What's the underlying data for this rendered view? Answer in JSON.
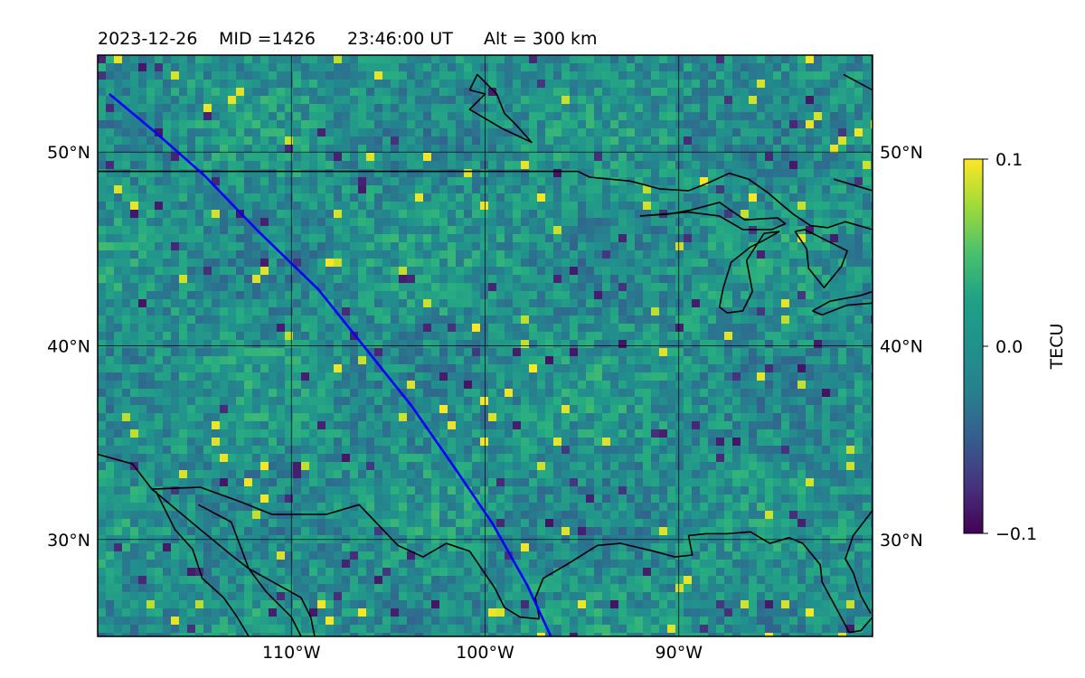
{
  "chart_data": {
    "type": "heatmap",
    "title": {
      "date": "2023-12-26",
      "mid": "MID =1426",
      "time": "23:46:00  UT",
      "alt": "Alt = 300 km"
    },
    "projection": "PlateCarree",
    "extent_deg": {
      "lon": [
        -120,
        -80
      ],
      "lat": [
        25,
        55
      ]
    },
    "grid": true,
    "x_ticks": [
      {
        "value": -110,
        "label": "110°W"
      },
      {
        "value": -100,
        "label": "100°W"
      },
      {
        "value": -90,
        "label": "90°W"
      }
    ],
    "y_ticks": [
      {
        "value": 30,
        "label": "30°N"
      },
      {
        "value": 40,
        "label": "40°N"
      },
      {
        "value": 50,
        "label": "50°N"
      }
    ],
    "colorbar": {
      "label": "TECU",
      "colormap": "viridis",
      "range": [
        -0.1,
        0.1
      ],
      "ticks": [
        {
          "value": 0.1,
          "label": "0.1"
        },
        {
          "value": 0.0,
          "label": "0.0"
        },
        {
          "value": -0.1,
          "label": "−0.1"
        }
      ]
    },
    "satellite_track": {
      "color": "#0000ff",
      "points_lonlat": [
        [
          -119.4,
          53.0
        ],
        [
          -117.0,
          51.0
        ],
        [
          -114.5,
          48.8
        ],
        [
          -111.8,
          46.0
        ],
        [
          -108.6,
          42.9
        ],
        [
          -106.2,
          39.9
        ],
        [
          -103.8,
          36.9
        ],
        [
          -101.5,
          33.6
        ],
        [
          -99.6,
          30.8
        ],
        [
          -97.8,
          27.6
        ],
        [
          -96.6,
          25.0
        ]
      ]
    },
    "coastlines": [
      [
        [
          -120,
          49.0
        ],
        [
          -95.2,
          49.0
        ],
        [
          -94.6,
          48.7
        ],
        [
          -92.5,
          48.5
        ],
        [
          -91,
          48.1
        ],
        [
          -89.5,
          48.0
        ],
        [
          -88.5,
          48.4
        ],
        [
          -87.4,
          48.9
        ],
        [
          -86.4,
          48.6
        ],
        [
          -85.4,
          47.9
        ],
        [
          -84.7,
          47.3
        ],
        [
          -84.1,
          46.8
        ],
        [
          -83.2,
          46.2
        ],
        [
          -82.3,
          46.1
        ],
        [
          -81.4,
          46.4
        ],
        [
          -80,
          46.0
        ]
      ],
      [
        [
          -80,
          48.0
        ],
        [
          -82.0,
          48.6
        ]
      ],
      [
        [
          -80,
          56.0
        ],
        [
          -80,
          53.2
        ],
        [
          -81.5,
          54.0
        ]
      ],
      [
        [
          -100.8,
          53.2
        ],
        [
          -100.4,
          54.0
        ],
        [
          -99.4,
          53.0
        ],
        [
          -99.0,
          52.0
        ],
        [
          -98.4,
          51.4
        ],
        [
          -97.6,
          50.5
        ],
        [
          -99.1,
          51.2
        ],
        [
          -100.8,
          52.2
        ],
        [
          -100.0,
          53.0
        ],
        [
          -100.8,
          53.2
        ]
      ],
      [
        [
          -92.0,
          46.7
        ],
        [
          -90.5,
          46.8
        ],
        [
          -89.4,
          47.0
        ],
        [
          -87.9,
          47.4
        ],
        [
          -86.6,
          46.5
        ],
        [
          -84.9,
          46.6
        ],
        [
          -84.5,
          46.3
        ],
        [
          -85.2,
          46.0
        ],
        [
          -86.7,
          46.0
        ],
        [
          -87.9,
          46.7
        ],
        [
          -89.5,
          46.9
        ],
        [
          -92.0,
          46.7
        ]
      ],
      [
        [
          -84.8,
          45.9
        ],
        [
          -85.7,
          45.4
        ],
        [
          -86.3,
          45.1
        ],
        [
          -87.3,
          44.3
        ],
        [
          -87.7,
          43.0
        ],
        [
          -87.9,
          42.0
        ],
        [
          -87.5,
          41.7
        ],
        [
          -86.7,
          41.8
        ],
        [
          -86.2,
          42.8
        ],
        [
          -86.5,
          44.4
        ],
        [
          -85.6,
          45.8
        ],
        [
          -84.8,
          45.9
        ]
      ],
      [
        [
          -84.0,
          45.9
        ],
        [
          -83.4,
          45.0
        ],
        [
          -83.3,
          44.0
        ],
        [
          -82.5,
          43.0
        ],
        [
          -81.6,
          44.1
        ],
        [
          -81.3,
          44.9
        ],
        [
          -82.3,
          45.4
        ],
        [
          -83.5,
          46.0
        ],
        [
          -84.0,
          45.9
        ]
      ],
      [
        [
          -83.1,
          41.8
        ],
        [
          -82.2,
          42.3
        ],
        [
          -80.6,
          42.6
        ],
        [
          -80,
          42.8
        ],
        [
          -80,
          42.2
        ],
        [
          -81.3,
          42.1
        ],
        [
          -82.6,
          41.6
        ],
        [
          -83.1,
          41.8
        ]
      ],
      [
        [
          -120,
          34.4
        ],
        [
          -118.2,
          33.9
        ],
        [
          -117.2,
          32.6
        ],
        [
          -114.8,
          30.6
        ],
        [
          -113.1,
          29.2
        ],
        [
          -112.2,
          28.5
        ],
        [
          -111.3,
          27.3
        ],
        [
          -110.0,
          26.0
        ],
        [
          -109.5,
          25.0
        ]
      ],
      [
        [
          -117.2,
          32.6
        ],
        [
          -114.7,
          32.7
        ],
        [
          -112.5,
          31.9
        ],
        [
          -111.0,
          31.3
        ],
        [
          -108.2,
          31.3
        ],
        [
          -106.5,
          31.8
        ],
        [
          -104.5,
          29.7
        ],
        [
          -103.2,
          29.1
        ],
        [
          -102.0,
          29.8
        ],
        [
          -100.8,
          29.4
        ],
        [
          -99.5,
          27.5
        ],
        [
          -99.0,
          26.5
        ],
        [
          -98.2,
          26.0
        ],
        [
          -97.2,
          25.9
        ]
      ],
      [
        [
          -117.0,
          32.5
        ],
        [
          -116.0,
          30.5
        ],
        [
          -115.1,
          29.5
        ],
        [
          -114.6,
          28.0
        ],
        [
          -113.5,
          27.0
        ],
        [
          -112.8,
          26.0
        ],
        [
          -112.2,
          25.0
        ]
      ],
      [
        [
          -114.8,
          31.8
        ],
        [
          -113.1,
          30.9
        ],
        [
          -112.2,
          28.5
        ],
        [
          -109.5,
          27.0
        ],
        [
          -109.0,
          26.0
        ],
        [
          -108.8,
          25.0
        ]
      ],
      [
        [
          -97.2,
          25.9
        ],
        [
          -97.4,
          27.0
        ],
        [
          -97.0,
          28.0
        ],
        [
          -95.8,
          28.7
        ],
        [
          -94.2,
          29.7
        ],
        [
          -93.0,
          29.8
        ],
        [
          -91.3,
          29.4
        ],
        [
          -90.2,
          29.1
        ],
        [
          -89.3,
          29.2
        ],
        [
          -89.5,
          30.2
        ],
        [
          -88.6,
          30.3
        ],
        [
          -87.5,
          30.3
        ],
        [
          -86.3,
          30.4
        ],
        [
          -85.3,
          29.8
        ],
        [
          -84.3,
          30.1
        ],
        [
          -83.6,
          29.8
        ],
        [
          -82.7,
          28.7
        ],
        [
          -82.6,
          27.8
        ],
        [
          -82.0,
          26.7
        ],
        [
          -81.2,
          25.2
        ],
        [
          -80.6,
          25.3
        ],
        [
          -80,
          26.0
        ]
      ],
      [
        [
          -80,
          31.5
        ],
        [
          -81.0,
          30.2
        ],
        [
          -81.4,
          29.0
        ],
        [
          -81.0,
          28.3
        ],
        [
          -80.6,
          27.1
        ],
        [
          -80.1,
          26.2
        ]
      ]
    ]
  }
}
